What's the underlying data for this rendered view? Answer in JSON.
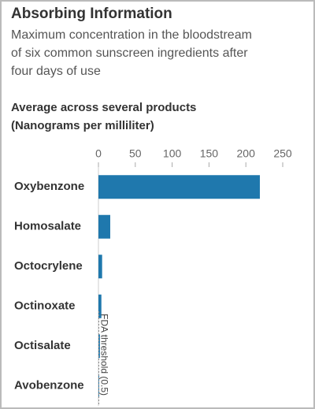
{
  "chart_data": {
    "type": "bar",
    "orientation": "horizontal",
    "title": "Absorbing Information",
    "subtitle": [
      "Maximum concentration in the bloodstream",
      "of six common sunscreen ingredients after",
      "four days of use"
    ],
    "axis_label": [
      "Average across several products",
      "(Nanograms per milliliter)"
    ],
    "categories": [
      "Oxybenzone",
      "Homosalate",
      "Octocrylene",
      "Octinoxate",
      "Octisalate",
      "Avobenzone"
    ],
    "values": [
      219,
      16,
      5,
      4,
      2,
      1
    ],
    "color": "#1f78ad",
    "xlim": [
      0,
      250
    ],
    "xticks": [
      0,
      50,
      100,
      150,
      200,
      250
    ],
    "threshold": {
      "value": 0.5,
      "label": "FDA threshold (0.5)"
    }
  }
}
